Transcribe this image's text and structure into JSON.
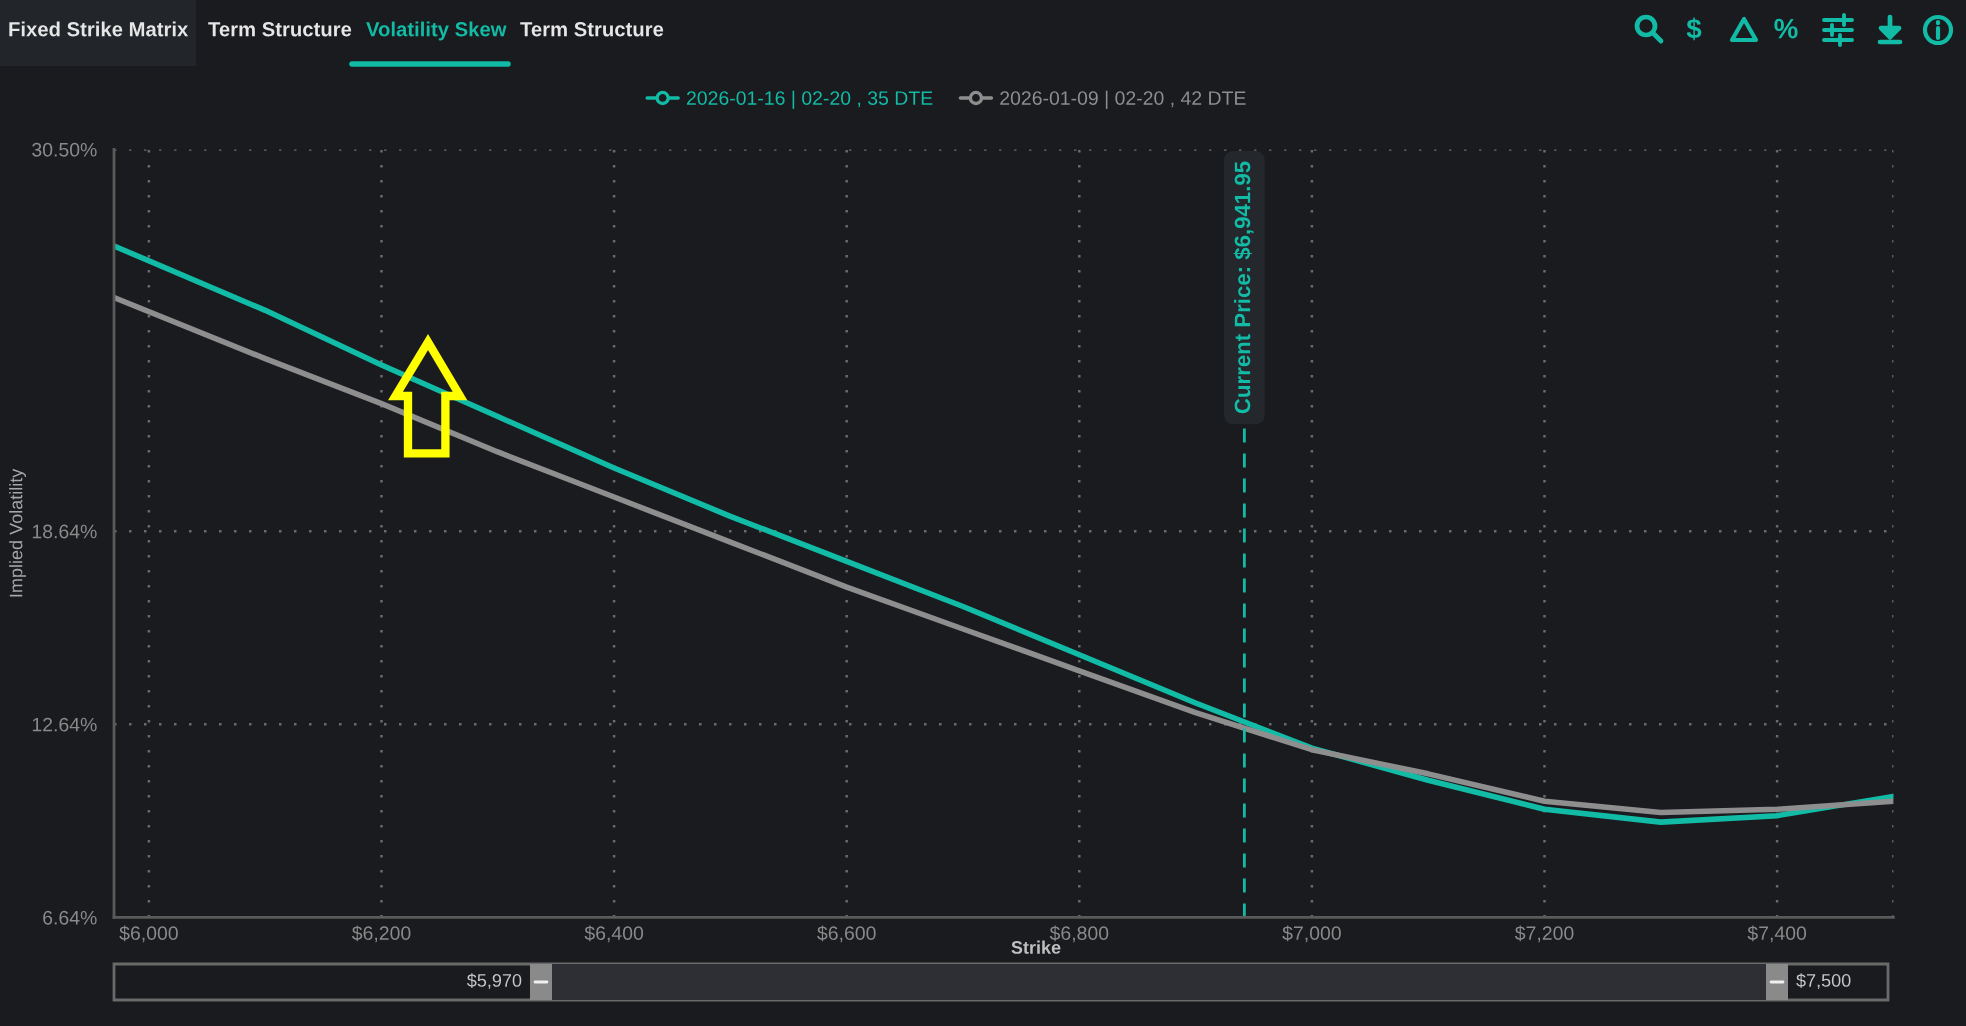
{
  "chart_data": {
    "type": "line",
    "xlabel": "Strike",
    "ylabel": "Implied Volatility",
    "x": [
      5970,
      6100,
      6200,
      6300,
      6400,
      6500,
      6600,
      6700,
      6800,
      6900,
      7000,
      7100,
      7200,
      7300,
      7400,
      7500
    ],
    "series": [
      {
        "name": "2026-01-16 | 02-20 , 35 DTE",
        "color": "#12bba6",
        "values": [
          27.5,
          25.5,
          23.8,
          22.2,
          20.6,
          19.1,
          17.7,
          16.3,
          14.8,
          13.3,
          11.9,
          10.9,
          10.0,
          9.6,
          9.8,
          10.4
        ]
      },
      {
        "name": "2026-01-09 | 02-20 , 42 DTE",
        "color": "#8e8e8e",
        "values": [
          25.9,
          24.0,
          22.6,
          21.1,
          19.7,
          18.3,
          16.9,
          15.6,
          14.3,
          13.0,
          11.85,
          11.1,
          10.25,
          9.9,
          10.0,
          10.25
        ]
      }
    ],
    "xlim": [
      5970,
      7500
    ],
    "xticks": [
      {
        "value": 6000,
        "label": "$6,000"
      },
      {
        "value": 6200,
        "label": "$6,200"
      },
      {
        "value": 6400,
        "label": "$6,400"
      },
      {
        "value": 6600,
        "label": "$6,600"
      },
      {
        "value": 6800,
        "label": "$6,800"
      },
      {
        "value": 7000,
        "label": "$7,000"
      },
      {
        "value": 7200,
        "label": "$7,200"
      },
      {
        "value": 7400,
        "label": "$7,400"
      },
      {
        "value": 7500,
        "label": null
      }
    ],
    "ylim": [
      6.64,
      30.5
    ],
    "yticks": [
      {
        "value": 6.64,
        "label": "6.64%"
      },
      {
        "value": 12.64,
        "label": "12.64%"
      },
      {
        "value": 18.64,
        "label": "18.64%"
      },
      {
        "value": 30.5,
        "label": "30.50%"
      }
    ],
    "grid": true,
    "legend": "top",
    "ref_lines": [
      {
        "axis": "x",
        "value": 6941.95,
        "label": "Current Price: $6,941.95",
        "color": "#12bba6",
        "line_style": "dashed"
      }
    ],
    "annotations": [
      "Fixed Strike Matrix",
      "Term Structure",
      "Volatility Skew",
      "Term Structure",
      "$",
      "%",
      "$5,970",
      "$7,500"
    ]
  }
}
